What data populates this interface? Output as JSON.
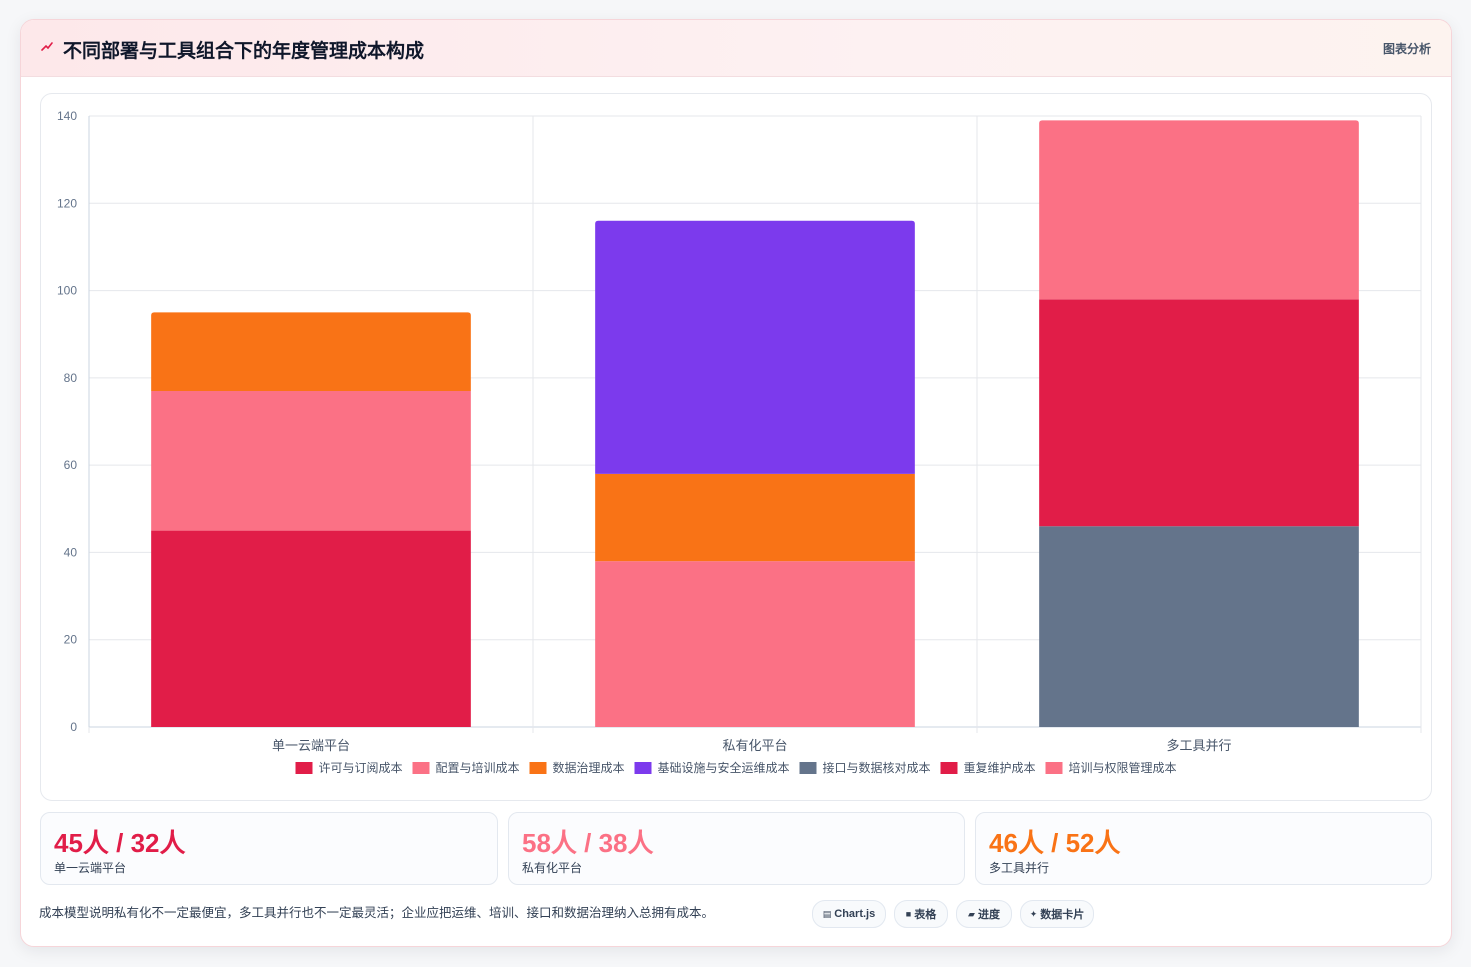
{
  "header": {
    "title": "不同部署与工具组合下的年度管理成本构成",
    "tag": "图表分析"
  },
  "colors": {
    "crimson": "#e11d48",
    "pink": "#fb7185",
    "orange": "#f97316",
    "purple": "#7c3aed",
    "slate": "#64748b"
  },
  "chart_data": {
    "type": "bar",
    "stacked": true,
    "categories": [
      "单一云端平台",
      "私有化平台",
      "多工具并行"
    ],
    "ylim": [
      0,
      140
    ],
    "yticks": [
      0,
      20,
      40,
      60,
      80,
      100,
      120,
      140
    ],
    "grid": true,
    "legend_position": "bottom",
    "series": [
      {
        "name": "许可与订阅成本",
        "color": "#e11d48",
        "values": [
          45,
          0,
          0
        ]
      },
      {
        "name": "配置与培训成本",
        "color": "#fb7185",
        "values": [
          32,
          38,
          0
        ]
      },
      {
        "name": "数据治理成本",
        "color": "#f97316",
        "values": [
          18,
          20,
          0
        ]
      },
      {
        "name": "基础设施与安全运维成本",
        "color": "#7c3aed",
        "values": [
          0,
          58,
          0
        ]
      },
      {
        "name": "接口与数据核对成本",
        "color": "#64748b",
        "values": [
          0,
          0,
          46
        ]
      },
      {
        "name": "重复维护成本",
        "color": "#e11d48",
        "values": [
          0,
          0,
          52
        ]
      },
      {
        "name": "培训与权限管理成本",
        "color": "#fb7185",
        "values": [
          0,
          0,
          41
        ]
      }
    ]
  },
  "stats": [
    {
      "value": "45人 / 32人",
      "label": "单一云端平台",
      "color": "#e11d48"
    },
    {
      "value": "58人 / 38人",
      "label": "私有化平台",
      "color": "#fb7185"
    },
    {
      "value": "46人 / 52人",
      "label": "多工具并行",
      "color": "#f97316"
    }
  ],
  "footer": {
    "note": "成本模型说明私有化不一定最便宜，多工具并行也不一定最灵活；企业应把运维、培训、接口和数据治理纳入总拥有成本。",
    "chips": [
      {
        "icon": "chart-icon",
        "label": "Chart.js"
      },
      {
        "icon": "table-icon",
        "label": "表格"
      },
      {
        "icon": "progress-icon",
        "label": "进度"
      },
      {
        "icon": "sparkle-icon",
        "label": "数据卡片"
      }
    ]
  }
}
